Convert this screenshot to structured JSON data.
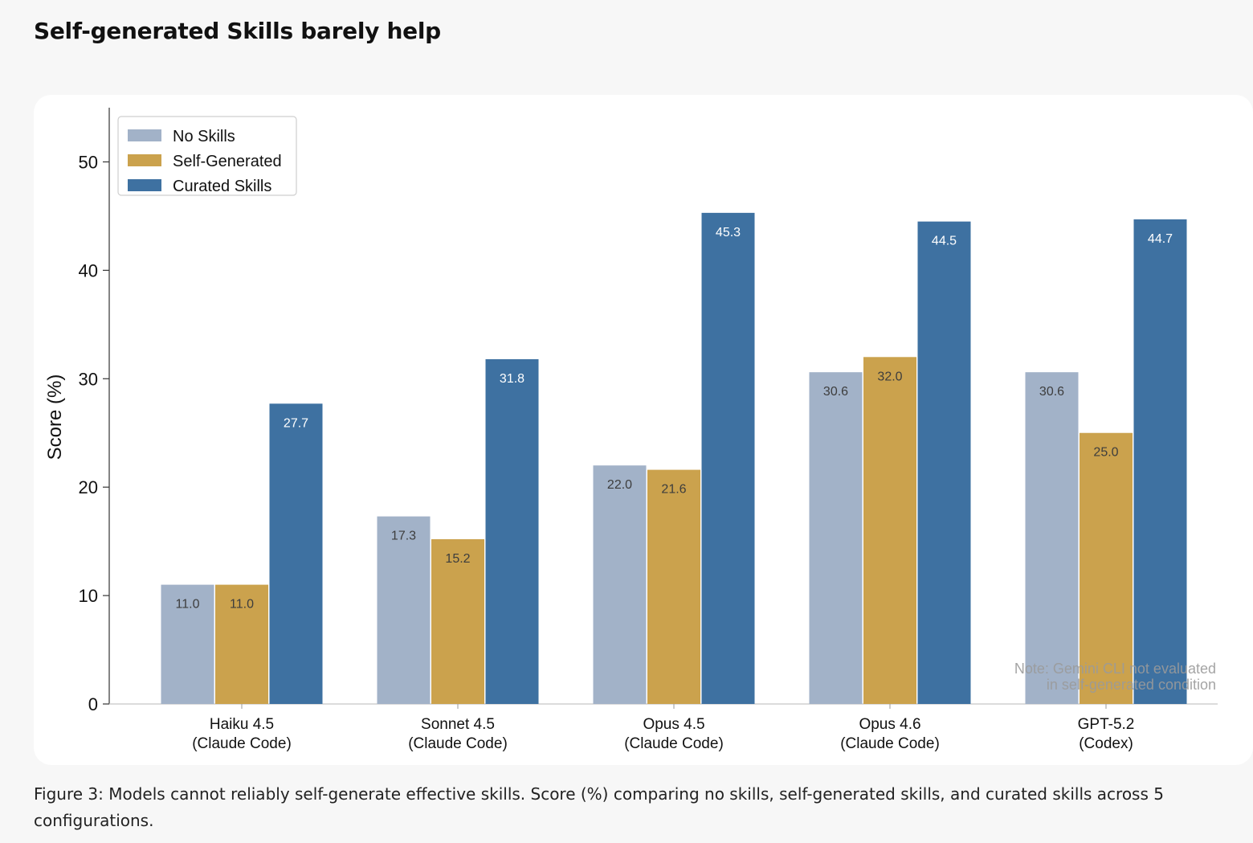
{
  "page": {
    "title": "Self-generated Skills barely help",
    "caption": "Figure 3: Models cannot reliably self-generate effective skills. Score (%) comparing no skills, self-generated skills, and curated skills across 5 configurations."
  },
  "chart_data": {
    "type": "bar",
    "title": "",
    "xlabel": "",
    "ylabel": "Score (%)",
    "ylim": [
      0,
      55
    ],
    "yticks": [
      0,
      10,
      20,
      30,
      40,
      50
    ],
    "grid": false,
    "legend_position": "top-left",
    "categories": [
      [
        "Haiku 4.5",
        "(Claude Code)"
      ],
      [
        "Sonnet 4.5",
        "(Claude Code)"
      ],
      [
        "Opus 4.5",
        "(Claude Code)"
      ],
      [
        "Opus 4.6",
        "(Claude Code)"
      ],
      [
        "GPT-5.2",
        "(Codex)"
      ]
    ],
    "series": [
      {
        "name": "No Skills",
        "color": "#a2b2c8",
        "label_color": "#3d3d3d",
        "values": [
          11.0,
          17.3,
          22.0,
          30.6,
          30.6
        ]
      },
      {
        "name": "Self-Generated",
        "color": "#cba24d",
        "label_color": "#3d3d3d",
        "values": [
          11.0,
          15.2,
          21.6,
          32.0,
          25.0
        ]
      },
      {
        "name": "Curated Skills",
        "color": "#3e71a1",
        "label_color": "#ffffff",
        "values": [
          27.7,
          31.8,
          45.3,
          44.5,
          44.7
        ]
      }
    ],
    "annotation": [
      "Note: Gemini CLI not evaluated",
      "in self-generated condition"
    ]
  }
}
